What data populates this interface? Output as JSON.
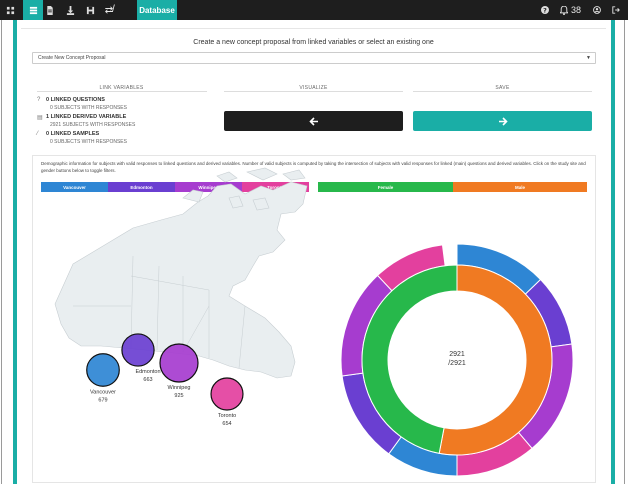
{
  "topbar": {
    "icons": [
      "database-icon",
      "document-icon",
      "download-icon",
      "save-icon",
      "swap-icon"
    ],
    "separator": "/",
    "active_tab": "Database",
    "notification_count": "38"
  },
  "proposal": {
    "title": "Create a new concept proposal from linked variables or select an existing one",
    "select_value": "Create New Concept Proposal"
  },
  "sections": {
    "link": "LINK VARIABLES",
    "visualize": "VISUALIZE",
    "save": "SAVE"
  },
  "stats": [
    {
      "icon": "question-icon",
      "glyph": "?",
      "title": "0 LINKED QUESTIONS",
      "sub": "0 SUBJECTS WITH RESPONSES"
    },
    {
      "icon": "table-icon",
      "glyph": "▤",
      "title": "1 LINKED DERIVED VARIABLE",
      "sub": "2921 SUBJECTS WITH RESPONSES"
    },
    {
      "icon": "pipette-icon",
      "glyph": "⁄",
      "title": "0 LINKED SAMPLES",
      "sub": "0 SUBJECTS WITH RESPONSES"
    }
  ],
  "buttons": {
    "back": "🡐",
    "next": "🡒"
  },
  "description": "Demographic information for subjects with valid responses to linked questions and derived variables. Number of valid subjects is computed by taking the intersection of subjects with valid responses for linked (main) questions and derived variables. Click on the study site and gender buttons below to toggle filters.",
  "filters": {
    "sites": [
      {
        "label": "Vancouver",
        "color": "#2e86d4"
      },
      {
        "label": "Edmonton",
        "color": "#6a3fd1"
      },
      {
        "label": "Winnipeg",
        "color": "#a63ccf"
      },
      {
        "label": "Toronto",
        "color": "#e3409e"
      }
    ],
    "genders": [
      {
        "label": "Female",
        "color": "#27b84b"
      },
      {
        "label": "Male",
        "color": "#f07a22"
      }
    ]
  },
  "chart_data": [
    {
      "type": "bubble-map",
      "points": [
        {
          "label": "Vancouver",
          "value": 679,
          "color": "#2e86d4"
        },
        {
          "label": "Edmonton",
          "value": 663,
          "color": "#6a3fd1"
        },
        {
          "label": "Winnipeg",
          "value": 925,
          "color": "#a63ccf"
        },
        {
          "label": "Toronto",
          "value": 654,
          "color": "#e3409e"
        }
      ]
    },
    {
      "type": "pie",
      "center_value": "2921",
      "center_total": "/2921",
      "inner_ring": [
        {
          "label": "Male",
          "fraction": 0.53,
          "color": "#f07a22"
        },
        {
          "label": "Female",
          "fraction": 0.47,
          "color": "#27b84b"
        }
      ],
      "outer_ring": [
        {
          "label": "Vancouver",
          "fraction": 0.128,
          "color": "#2e86d4"
        },
        {
          "label": "Edmonton",
          "fraction": 0.1,
          "color": "#6a3fd1"
        },
        {
          "label": "Winnipeg",
          "fraction": 0.16,
          "color": "#a63ccf"
        },
        {
          "label": "Toronto",
          "fraction": 0.112,
          "color": "#e3409e"
        },
        {
          "label": "Vancouver",
          "fraction": 0.1,
          "color": "#2e86d4"
        },
        {
          "label": "Edmonton",
          "fraction": 0.128,
          "color": "#6a3fd1"
        },
        {
          "label": "Winnipeg",
          "fraction": 0.152,
          "color": "#a63ccf"
        },
        {
          "label": "Toronto",
          "fraction": 0.1,
          "color": "#e3409e"
        }
      ]
    }
  ]
}
